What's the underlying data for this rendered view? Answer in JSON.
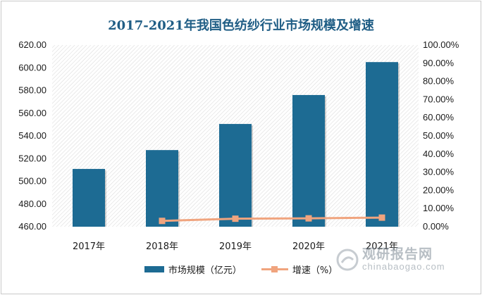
{
  "chart_data": {
    "type": "bar",
    "title": "2017-2021年我国色纺纱行业市场规模及增速",
    "categories": [
      "2017年",
      "2018年",
      "2019年",
      "2020年",
      "2021年"
    ],
    "series": [
      {
        "name": "市场规模（亿元）",
        "type": "bar",
        "axis": "left",
        "color": "#1d6b93",
        "values": [
          510.9,
          527.5,
          550.5,
          576.0,
          605.0
        ]
      },
      {
        "name": "增速（%）",
        "type": "line",
        "axis": "right",
        "color": "#f0a47e",
        "values": [
          null,
          3.2,
          4.4,
          4.6,
          5.0
        ]
      }
    ],
    "y_left": {
      "min": 460,
      "max": 620,
      "step": 20,
      "ticks": [
        "460.00",
        "480.00",
        "500.00",
        "520.00",
        "540.00",
        "560.00",
        "580.00",
        "600.00",
        "620.00"
      ]
    },
    "y_right": {
      "min": 0,
      "max": 100,
      "step": 10,
      "ticks": [
        "0.00%",
        "10.00%",
        "20.00%",
        "30.00%",
        "40.00%",
        "50.00%",
        "60.00%",
        "70.00%",
        "80.00%",
        "90.00%",
        "100.00%"
      ]
    },
    "background": "hatched",
    "legend_position": "bottom"
  },
  "watermark": {
    "cn": "观研报告网",
    "en": "chinabaogao.com"
  }
}
